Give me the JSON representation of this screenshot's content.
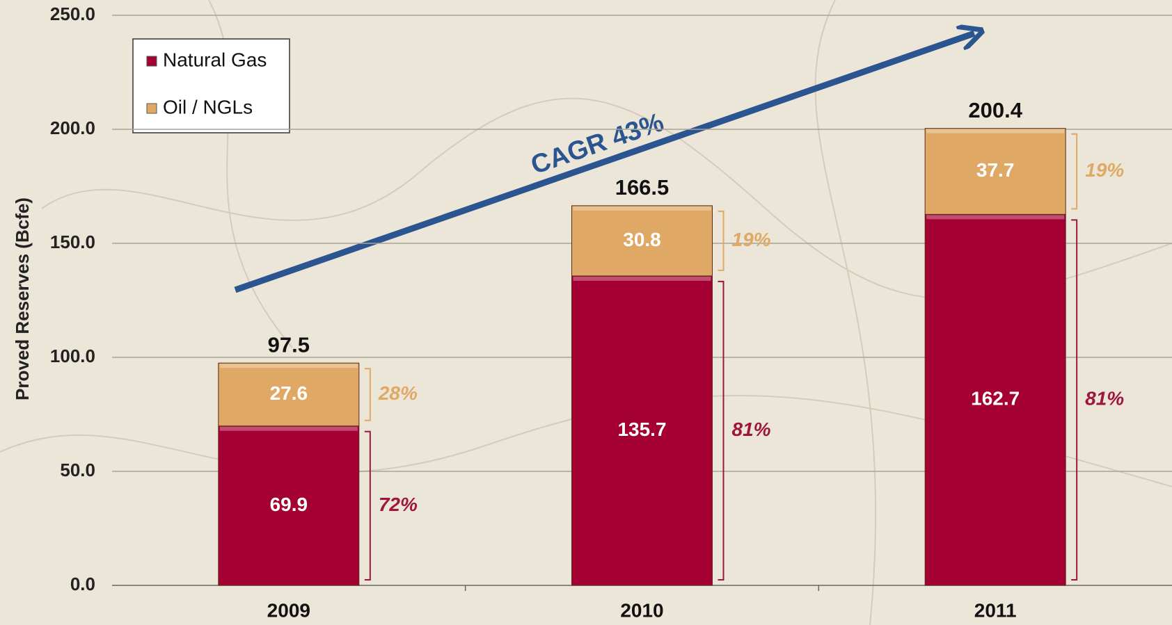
{
  "chart_data": {
    "type": "stacked_bar",
    "y_label": "Proved Reserves (Bcfe)",
    "annotation": "CAGR 43%",
    "categories": [
      "2009",
      "2010",
      "2011"
    ],
    "series": [
      {
        "name": "Natural Gas",
        "color": "#a50034",
        "label_color": "#a0153e",
        "values": [
          69.9,
          135.7,
          162.7
        ],
        "percent_labels": [
          "72%",
          "81%",
          "81%"
        ]
      },
      {
        "name": "Oil / NGLs",
        "color": "#e0a865",
        "label_color": "#e0a865",
        "values": [
          27.6,
          30.8,
          37.7
        ],
        "percent_labels": [
          "28%",
          "19%",
          "19%"
        ]
      }
    ],
    "totals": [
      97.5,
      166.5,
      200.4
    ],
    "ylim": [
      0,
      250
    ],
    "yticks": [
      {
        "value": 0,
        "label": "0.0"
      },
      {
        "value": 50,
        "label": "50.0"
      },
      {
        "value": 100,
        "label": "100.0"
      },
      {
        "value": 150,
        "label": "150.0"
      },
      {
        "value": 200,
        "label": "200.0"
      },
      {
        "value": 250,
        "label": "250.0"
      }
    ],
    "grid": true,
    "legend": "top-left"
  }
}
